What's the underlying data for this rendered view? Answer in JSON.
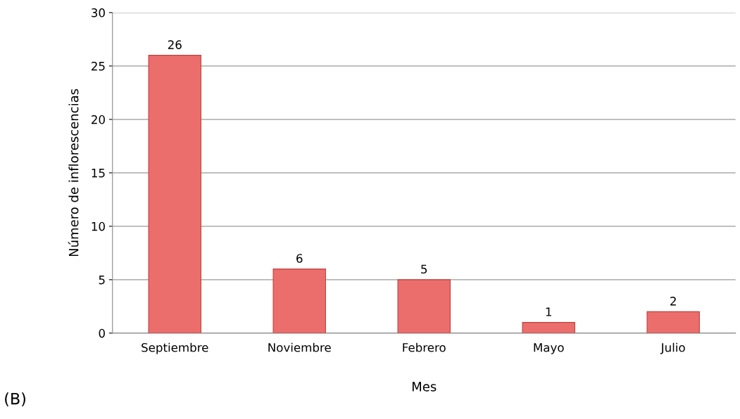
{
  "chart_data": {
    "type": "bar",
    "xlabel": "Mes",
    "ylabel": "Número de inflorescencias",
    "categories": [
      "Septiembre",
      "Noviembre",
      "Febrero",
      "Mayo",
      "Julio"
    ],
    "values": [
      26,
      6,
      5,
      1,
      2
    ],
    "color": "#ec6e6c",
    "ylim": [
      0,
      30
    ],
    "yticks": [
      0,
      5,
      10,
      15,
      20,
      25,
      30
    ],
    "grid": "y",
    "data_labels": true,
    "annotations": [
      "(B)"
    ]
  }
}
